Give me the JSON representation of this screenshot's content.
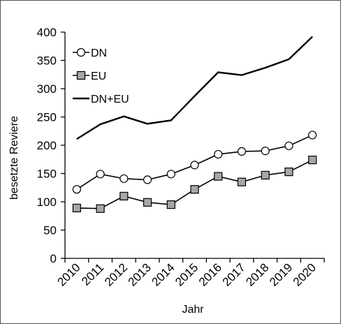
{
  "chart_data": {
    "type": "line",
    "title": "",
    "xlabel": "Jahr",
    "ylabel": "besetzte Reviere",
    "categories": [
      "2010",
      "2011",
      "2012",
      "2013",
      "2014",
      "2015",
      "2016",
      "2017",
      "2018",
      "2019",
      "2020"
    ],
    "ylim": [
      0,
      400
    ],
    "yticks": [
      "0",
      "50",
      "100",
      "150",
      "200",
      "250",
      "300",
      "350",
      "400"
    ],
    "grid": false,
    "legend_position": "top-left",
    "series": [
      {
        "name": "DN",
        "marker": "open-circle",
        "color": "#000000",
        "values": [
          122,
          149,
          141,
          139,
          149,
          165,
          184,
          189,
          190,
          199,
          218
        ]
      },
      {
        "name": "EU",
        "marker": "gray-square",
        "color": "#000000",
        "values": [
          89,
          88,
          110,
          99,
          95,
          122,
          145,
          135,
          147,
          153,
          174
        ]
      },
      {
        "name": "DN+EU",
        "marker": "none",
        "color": "#000000",
        "values": [
          211,
          237,
          251,
          238,
          244,
          287,
          329,
          324,
          337,
          352,
          392
        ]
      }
    ]
  },
  "colors": {
    "axis": "#000000",
    "square_fill": "#a6a6a6",
    "circle_fill": "#ffffff"
  }
}
